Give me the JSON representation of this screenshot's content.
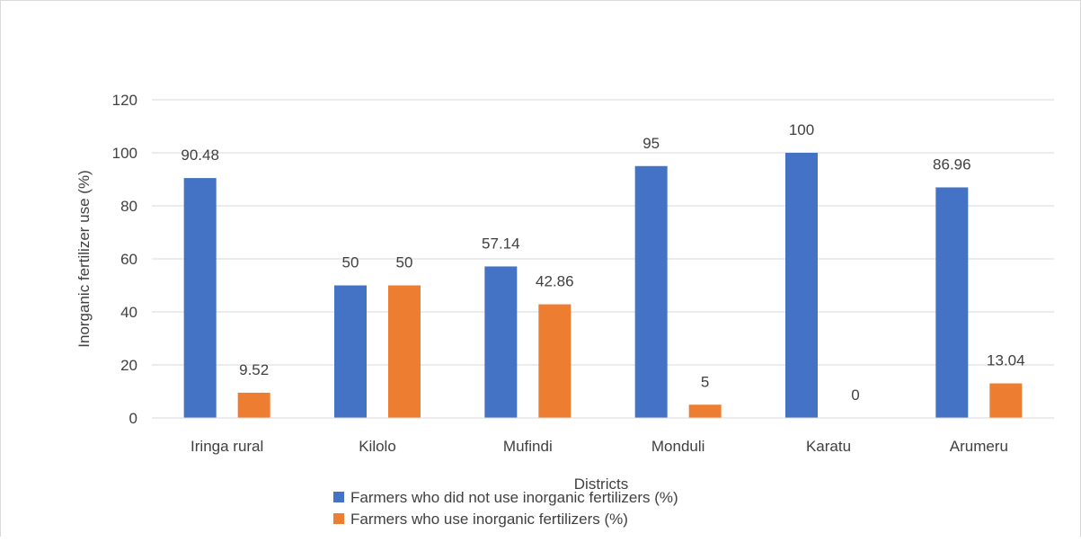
{
  "chart_data": {
    "type": "bar",
    "categories": [
      "Iringa rural",
      "Kilolo",
      "Mufindi",
      "Monduli",
      "Karatu",
      "Arumeru"
    ],
    "series": [
      {
        "name": "Farmers who did not use inorganic fertilizers (%)",
        "values": [
          90.48,
          50,
          57.14,
          95,
          100,
          86.96
        ],
        "labels": [
          "90.48",
          "50",
          "57.14",
          "95",
          "100",
          "86.96"
        ],
        "color": "#4472c4"
      },
      {
        "name": "Farmers who use inorganic fertilizers (%)",
        "values": [
          9.52,
          50,
          42.86,
          5,
          0,
          13.04
        ],
        "labels": [
          "9.52",
          "50",
          "42.86",
          "5",
          "0",
          "13.04"
        ],
        "color": "#ed7d31"
      }
    ],
    "title": "",
    "xlabel": "Districts",
    "ylabel": "Inorganic fertilizer use (%)",
    "ylim": [
      0,
      120
    ],
    "yticks": [
      "0",
      "20",
      "40",
      "60",
      "80",
      "100",
      "120"
    ],
    "grid": true,
    "legend": "bottom"
  }
}
